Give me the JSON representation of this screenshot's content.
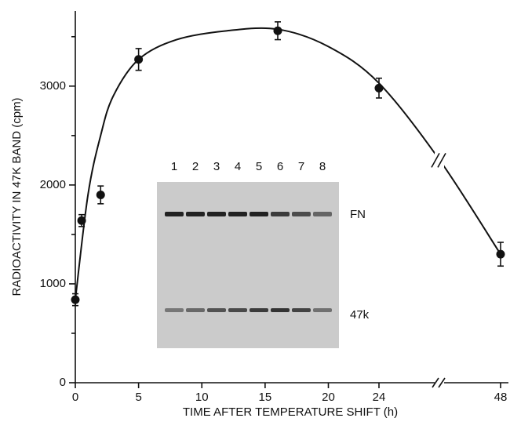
{
  "chart_data": {
    "type": "scatter",
    "y_label": "RADIOACTIVITY IN 47K BAND (cpm)",
    "x_label": "TIME AFTER TEMPERATURE SHIFT (h)",
    "x": [
      0,
      0.5,
      2,
      5,
      16,
      24,
      48
    ],
    "values": [
      840,
      1640,
      1900,
      3270,
      3560,
      2980,
      1300
    ],
    "errors": [
      60,
      60,
      90,
      110,
      90,
      100,
      120
    ],
    "color": "#111111",
    "fit": {
      "x": [
        0,
        1,
        2,
        3,
        5,
        8,
        12,
        16,
        20,
        24,
        36,
        48
      ],
      "values": [
        840,
        1900,
        2500,
        2900,
        3270,
        3470,
        3560,
        3575,
        3400,
        3030,
        2250,
        1300
      ]
    },
    "xlim": [
      0,
      48
    ],
    "xticks": [
      0,
      5,
      10,
      15,
      20,
      24,
      48
    ],
    "x_axis_break": true,
    "ylim": [
      0,
      3760
    ],
    "yticks": [
      0,
      1000,
      2000,
      3000
    ],
    "yminor": [
      500,
      1500,
      2500,
      3500
    ],
    "inset": {
      "lanes": [
        "1",
        "2",
        "3",
        "4",
        "5",
        "6",
        "7",
        "8"
      ],
      "bands": [
        "FN",
        "47k"
      ]
    }
  }
}
